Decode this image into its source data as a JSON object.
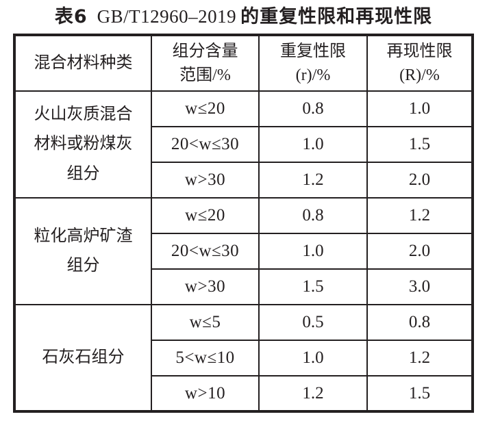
{
  "page": {
    "title": {
      "prefix": "表6",
      "standard": "GB/T12960–2019",
      "suffix": "的重复性限和再现性限"
    }
  },
  "table": {
    "headers": {
      "material": "混合材料种类",
      "range_line1": "组分含量",
      "range_line2": "范围/%",
      "repeatability_line1": "重复性限",
      "repeatability_line2": "(r)/%",
      "reproducibility_line1": "再现性限",
      "reproducibility_line2": "(R)/%"
    },
    "groups": [
      {
        "material": "火山灰质混合材料或粉煤灰组分",
        "rows": [
          {
            "range": "w≤20",
            "r": "0.8",
            "R": "1.0"
          },
          {
            "range": "20<w≤30",
            "r": "1.0",
            "R": "1.5"
          },
          {
            "range": "w>30",
            "r": "1.2",
            "R": "2.0"
          }
        ]
      },
      {
        "material": "粒化高炉矿渣组分",
        "rows": [
          {
            "range": "w≤20",
            "r": "0.8",
            "R": "1.2"
          },
          {
            "range": "20<w≤30",
            "r": "1.0",
            "R": "2.0"
          },
          {
            "range": "w>30",
            "r": "1.5",
            "R": "3.0"
          }
        ]
      },
      {
        "material": "石灰石组分",
        "rows": [
          {
            "range": "w≤5",
            "r": "0.5",
            "R": "0.8"
          },
          {
            "range": "5<w≤10",
            "r": "1.0",
            "R": "1.2"
          },
          {
            "range": "w>10",
            "r": "1.2",
            "R": "1.5"
          }
        ]
      }
    ]
  },
  "colors": {
    "text": "#231f20",
    "border": "#231f20",
    "background": "#ffffff"
  }
}
